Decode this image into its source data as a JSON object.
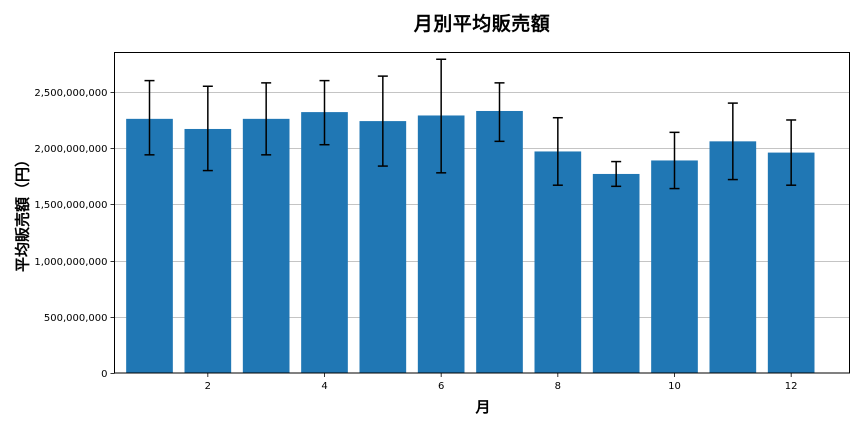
{
  "chart_data": {
    "type": "bar",
    "title": "月別平均販売額",
    "xlabel": "月",
    "ylabel": "平均販売額（円）",
    "categories": [
      1,
      2,
      3,
      4,
      5,
      6,
      7,
      8,
      9,
      10,
      11,
      12
    ],
    "values": [
      2260000000,
      2170000000,
      2260000000,
      2320000000,
      2240000000,
      2290000000,
      2330000000,
      1970000000,
      1770000000,
      1890000000,
      2060000000,
      1960000000
    ],
    "error_upper": [
      2600000000,
      2550000000,
      2580000000,
      2600000000,
      2640000000,
      2790000000,
      2580000000,
      2270000000,
      1880000000,
      2140000000,
      2400000000,
      2250000000
    ],
    "error_lower": [
      1940000000,
      1800000000,
      1940000000,
      2030000000,
      1840000000,
      1780000000,
      2060000000,
      1670000000,
      1660000000,
      1640000000,
      1720000000,
      1670000000
    ],
    "ylim": [
      0,
      2850000000
    ],
    "xlim": [
      0.4,
      13.0
    ],
    "yticks": [
      0,
      500000000,
      1000000000,
      1500000000,
      2000000000,
      2500000000
    ],
    "ytick_labels": [
      "0",
      "500,000,000",
      "1,000,000,000",
      "1,500,000,000",
      "2,000,000,000",
      "2,500,000,000"
    ],
    "xticks": [
      2,
      4,
      6,
      8,
      10,
      12
    ],
    "xtick_labels": [
      "2",
      "4",
      "6",
      "8",
      "10",
      "12"
    ],
    "grid": "y",
    "legend": null,
    "colors": {
      "bar": "#2077b4",
      "error": "#000000",
      "grid": "#b0b0b0",
      "axis": "#000000"
    }
  }
}
